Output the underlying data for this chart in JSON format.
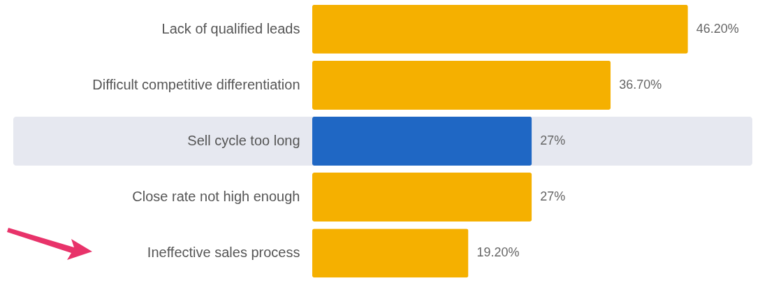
{
  "chart_data": {
    "type": "bar",
    "orientation": "horizontal",
    "categories": [
      "Lack of qualified leads",
      "Difficult competitive differentiation",
      "Sell cycle too long",
      "Close rate not high enough",
      "Ineffective sales process"
    ],
    "values": [
      46.2,
      36.7,
      27,
      27,
      19.2
    ],
    "colors": [
      "#f5b000",
      "#f5b000",
      "#1f67c4",
      "#f5b000",
      "#f5b000"
    ],
    "value_labels": [
      "46.20%",
      "36.70%",
      "27%",
      "27%",
      "19.20%"
    ],
    "bands": [
      {
        "axis": "y",
        "from": "Sell cycle too long",
        "to": "Sell cycle too long",
        "color": "#e6e8f0"
      }
    ]
  }
}
